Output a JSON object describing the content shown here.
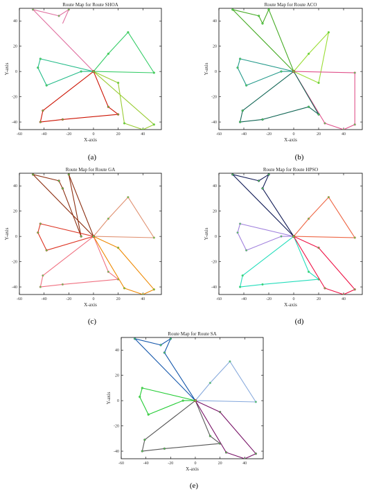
{
  "chart_data": [
    {
      "type": "line",
      "panel_label": "(a)",
      "title": "Route Map for Route SHOA",
      "xlabel": "X-axis",
      "ylabel": "Y-axis",
      "xlim": [
        -60,
        55
      ],
      "ylim": [
        -46,
        50
      ],
      "xticks": [
        -60,
        -40,
        -20,
        0,
        20,
        40
      ],
      "yticks": [
        -40,
        -20,
        0,
        20,
        40
      ],
      "series": [
        {
          "color": "#e070a0",
          "points": [
            [
              0,
              0
            ],
            [
              -49,
              49
            ],
            [
              -28,
              44
            ],
            [
              -20,
              49
            ],
            [
              -25,
              38
            ]
          ]
        },
        {
          "color": "#33cc66",
          "points": [
            [
              0,
              0
            ],
            [
              12,
              14
            ],
            [
              28,
              31
            ],
            [
              49,
              -1
            ],
            [
              0,
              0
            ]
          ]
        },
        {
          "color": "#22bb88",
          "points": [
            [
              0,
              0
            ],
            [
              -43,
              10
            ],
            [
              -45,
              3
            ],
            [
              -38,
              -11
            ],
            [
              -10,
              0
            ],
            [
              0,
              0
            ]
          ]
        },
        {
          "color": "#cc1100",
          "points": [
            [
              0,
              0
            ],
            [
              -41,
              -31
            ],
            [
              -43,
              -40
            ],
            [
              -25,
              -38
            ],
            [
              20,
              -34
            ],
            [
              12,
              -28
            ],
            [
              0,
              0
            ]
          ]
        },
        {
          "color": "#99cc33",
          "points": [
            [
              0,
              0
            ],
            [
              20,
              -9
            ],
            [
              25,
              -41
            ],
            [
              40,
              -46
            ],
            [
              49,
              -42
            ],
            [
              0,
              0
            ]
          ]
        }
      ]
    },
    {
      "type": "line",
      "panel_label": "(b)",
      "title": "Route Map for Route ACO",
      "xlabel": "X-axis",
      "ylabel": "Y-axis",
      "xlim": [
        -60,
        55
      ],
      "ylim": [
        -46,
        50
      ],
      "xticks": [
        -60,
        -40,
        -20,
        0,
        20,
        40
      ],
      "yticks": [
        -40,
        -20,
        0,
        20,
        40
      ],
      "series": [
        {
          "color": "#44aa22",
          "points": [
            [
              0,
              0
            ],
            [
              -49,
              49
            ],
            [
              -28,
              44
            ],
            [
              -25,
              38
            ],
            [
              -20,
              49
            ],
            [
              0,
              0
            ]
          ]
        },
        {
          "color": "#99dd33",
          "points": [
            [
              0,
              0
            ],
            [
              12,
              14
            ],
            [
              28,
              31
            ],
            [
              20,
              -9
            ],
            [
              0,
              0
            ]
          ]
        },
        {
          "color": "#22998a",
          "points": [
            [
              0,
              0
            ],
            [
              -43,
              10
            ],
            [
              -45,
              3
            ],
            [
              -38,
              -11
            ],
            [
              -10,
              0
            ],
            [
              0,
              0
            ]
          ]
        },
        {
          "color": "#e0508a",
          "points": [
            [
              0,
              0
            ],
            [
              49,
              -1
            ],
            [
              49,
              -42
            ],
            [
              40,
              -46
            ],
            [
              25,
              -41
            ],
            [
              0,
              0
            ]
          ]
        },
        {
          "color": "#116655",
          "points": [
            [
              0,
              0
            ],
            [
              -41,
              -31
            ],
            [
              -43,
              -40
            ],
            [
              -25,
              -38
            ],
            [
              12,
              -28
            ],
            [
              20,
              -34
            ],
            [
              0,
              0
            ]
          ]
        }
      ]
    },
    {
      "type": "line",
      "panel_label": "(c)",
      "title": "Route Map for Route GA",
      "xlabel": "X-axis",
      "ylabel": "Y-axis",
      "xlim": [
        -60,
        55
      ],
      "ylim": [
        -46,
        50
      ],
      "xticks": [
        -60,
        -40,
        -20,
        0,
        20,
        40
      ],
      "yticks": [
        -40,
        -20,
        0,
        20,
        40
      ],
      "series": [
        {
          "color": "#8b2e10",
          "points": [
            [
              0,
              0
            ],
            [
              -49,
              49
            ],
            [
              -28,
              44
            ],
            [
              -25,
              38
            ],
            [
              -10,
              0
            ],
            [
              -20,
              49
            ],
            [
              0,
              0
            ]
          ]
        },
        {
          "color": "#e09070",
          "points": [
            [
              0,
              0
            ],
            [
              12,
              14
            ],
            [
              28,
              31
            ],
            [
              49,
              -1
            ],
            [
              0,
              0
            ]
          ]
        },
        {
          "color": "#dd3322",
          "points": [
            [
              0,
              0
            ],
            [
              -43,
              10
            ],
            [
              -45,
              3
            ],
            [
              -38,
              -11
            ],
            [
              0,
              0
            ]
          ]
        },
        {
          "color": "#f07080",
          "points": [
            [
              0,
              0
            ],
            [
              12,
              -28
            ],
            [
              20,
              -34
            ],
            [
              -25,
              -38
            ],
            [
              -43,
              -40
            ],
            [
              -41,
              -31
            ],
            [
              0,
              0
            ]
          ]
        },
        {
          "color": "#ee8800",
          "points": [
            [
              0,
              0
            ],
            [
              20,
              -9
            ],
            [
              49,
              -42
            ],
            [
              40,
              -46
            ],
            [
              25,
              -41
            ],
            [
              0,
              0
            ]
          ]
        }
      ]
    },
    {
      "type": "line",
      "panel_label": "(d)",
      "title": "Route Map for Route HPSO",
      "xlabel": "X-axis",
      "ylabel": "Y-axis",
      "xlim": [
        -60,
        55
      ],
      "ylim": [
        -46,
        50
      ],
      "xticks": [
        -60,
        -40,
        -20,
        0,
        20,
        40
      ],
      "yticks": [
        -40,
        -20,
        0,
        20,
        40
      ],
      "series": [
        {
          "color": "#101a55",
          "points": [
            [
              0,
              0
            ],
            [
              -49,
              49
            ],
            [
              -28,
              44
            ],
            [
              -20,
              49
            ],
            [
              -25,
              38
            ],
            [
              0,
              0
            ]
          ]
        },
        {
          "color": "#ee6644",
          "points": [
            [
              0,
              0
            ],
            [
              12,
              14
            ],
            [
              28,
              31
            ],
            [
              49,
              -1
            ],
            [
              0,
              0
            ]
          ]
        },
        {
          "color": "#a080dd",
          "points": [
            [
              0,
              0
            ],
            [
              -43,
              10
            ],
            [
              -45,
              3
            ],
            [
              -38,
              -11
            ],
            [
              -10,
              0
            ],
            [
              0,
              0
            ]
          ]
        },
        {
          "color": "#22ddbb",
          "points": [
            [
              0,
              0
            ],
            [
              -41,
              -31
            ],
            [
              -43,
              -40
            ],
            [
              -25,
              -38
            ],
            [
              20,
              -34
            ],
            [
              12,
              -28
            ],
            [
              0,
              0
            ]
          ]
        },
        {
          "color": "#ee1144",
          "points": [
            [
              0,
              0
            ],
            [
              20,
              -9
            ],
            [
              49,
              -42
            ],
            [
              40,
              -46
            ],
            [
              25,
              -41
            ],
            [
              0,
              0
            ]
          ]
        }
      ]
    },
    {
      "type": "line",
      "panel_label": "(e)",
      "title": "Route Map for Route SA",
      "xlabel": "X-axis",
      "ylabel": "Y-axis",
      "xlim": [
        -60,
        55
      ],
      "ylim": [
        -46,
        50
      ],
      "xticks": [
        -60,
        -40,
        -20,
        0,
        20,
        40
      ],
      "yticks": [
        -40,
        -20,
        0,
        20,
        40
      ],
      "series": [
        {
          "color": "#1155aa",
          "points": [
            [
              0,
              0
            ],
            [
              -49,
              49
            ],
            [
              -28,
              44
            ],
            [
              -20,
              49
            ],
            [
              -25,
              38
            ],
            [
              0,
              0
            ]
          ]
        },
        {
          "color": "#88aadd",
          "points": [
            [
              0,
              0
            ],
            [
              12,
              14
            ],
            [
              28,
              31
            ],
            [
              49,
              -1
            ],
            [
              0,
              0
            ]
          ]
        },
        {
          "color": "#22cc33",
          "points": [
            [
              0,
              0
            ],
            [
              -43,
              10
            ],
            [
              -45,
              3
            ],
            [
              -38,
              -11
            ],
            [
              -10,
              0
            ],
            [
              0,
              0
            ]
          ]
        },
        {
          "color": "#555555",
          "points": [
            [
              0,
              0
            ],
            [
              -41,
              -31
            ],
            [
              -43,
              -40
            ],
            [
              -25,
              -38
            ],
            [
              20,
              -34
            ],
            [
              12,
              -28
            ],
            [
              0,
              0
            ]
          ]
        },
        {
          "color": "#771166",
          "points": [
            [
              0,
              0
            ],
            [
              20,
              -9
            ],
            [
              49,
              -42
            ],
            [
              40,
              -46
            ],
            [
              25,
              -41
            ],
            [
              0,
              0
            ]
          ]
        }
      ]
    }
  ]
}
